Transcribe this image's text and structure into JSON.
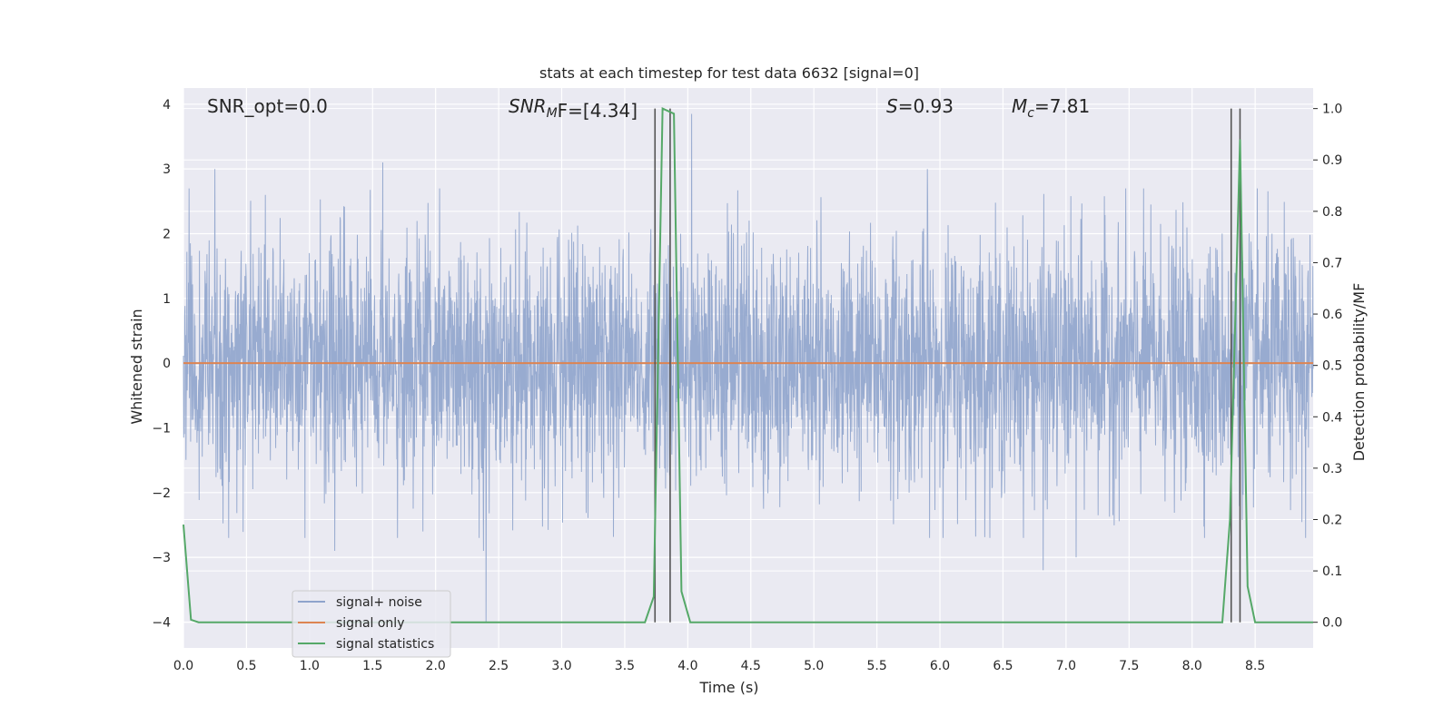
{
  "chart_data": {
    "type": "line",
    "title": "stats at each timestep for test data 6632 [signal=0]",
    "xlabel": "Time (s)",
    "ylabel": "Whitened strain",
    "y2label": "Detection probability/MF",
    "xlim": [
      0.0,
      8.96
    ],
    "ylim": [
      -4.4,
      4.25
    ],
    "y2lim": [
      -0.05,
      1.04
    ],
    "xticks": [
      "0.0",
      "0.5",
      "1.0",
      "1.5",
      "2.0",
      "2.5",
      "3.0",
      "3.5",
      "4.0",
      "4.5",
      "5.0",
      "5.5",
      "6.0",
      "6.5",
      "7.0",
      "7.5",
      "8.0",
      "8.5"
    ],
    "yticks": [
      "4",
      "3",
      "2",
      "1",
      "0",
      "−1",
      "−2",
      "−3",
      "−4"
    ],
    "y2ticks": [
      "1.0",
      "0.9",
      "0.8",
      "0.7",
      "0.6",
      "0.5",
      "0.4",
      "0.3",
      "0.2",
      "0.1",
      "0.0"
    ],
    "grid": true,
    "legend_position": "lower-left",
    "annotations": {
      "snr_opt": "SNR_opt=0.0",
      "snr_mf_base": "SNR",
      "snr_mf_sub": "M",
      "snr_mf_rest": "F=[4.34]",
      "s_sym": "S",
      "s_val": "=0.93",
      "mc_sym": "M",
      "mc_sub": "c",
      "mc_val": "=7.81"
    },
    "series": [
      {
        "name": "signal+ noise",
        "color": "#8fa4cc",
        "description_of_values": "whitened strain noise, roughly Gaussian with occasional spikes",
        "spikes": [
          {
            "x": 0.25,
            "y": 3.0
          },
          {
            "x": 0.65,
            "y": 2.6
          },
          {
            "x": 1.58,
            "y": 3.1
          },
          {
            "x": 2.4,
            "y": -4.0
          },
          {
            "x": 2.38,
            "y": -2.9
          },
          {
            "x": 4.03,
            "y": 3.85
          },
          {
            "x": 5.9,
            "y": 3.0
          },
          {
            "x": 6.82,
            "y": -3.2
          },
          {
            "x": 7.08,
            "y": -3.0
          },
          {
            "x": 1.2,
            "y": -2.9
          },
          {
            "x": 1.9,
            "y": -2.6
          },
          {
            "x": 8.9,
            "y": -2.7
          }
        ]
      },
      {
        "name": "signal only",
        "color": "#dd8452",
        "x": [
          0.0,
          8.96
        ],
        "y": [
          0.0,
          0.0
        ]
      },
      {
        "name": "signal statistics",
        "color": "#55a868",
        "axis": "right",
        "x": [
          0.0,
          0.06,
          0.12,
          0.2,
          3.66,
          3.73,
          3.8,
          3.89,
          3.95,
          4.02,
          8.24,
          8.3,
          8.38,
          8.44,
          8.5,
          8.96
        ],
        "y": [
          0.19,
          0.005,
          0.0,
          0.0,
          0.0,
          0.05,
          1.0,
          0.99,
          0.06,
          0.0,
          0.0,
          0.2,
          0.94,
          0.07,
          0.0,
          0.0
        ]
      }
    ],
    "vlines": {
      "color": "#555555",
      "x": [
        3.74,
        3.86,
        8.31,
        8.38
      ],
      "ymin": 0.0,
      "ymax": 1.0
    }
  }
}
